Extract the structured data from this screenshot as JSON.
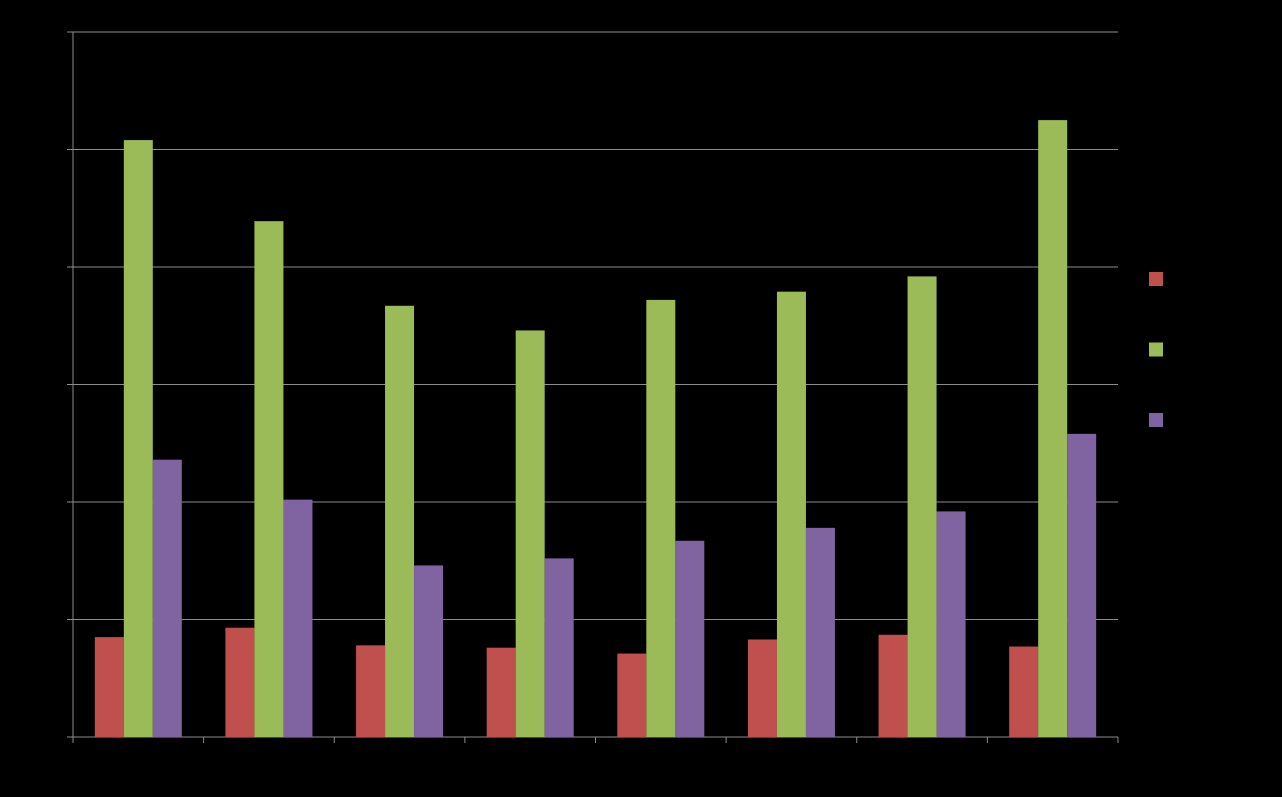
{
  "chart_data": {
    "type": "bar",
    "title": "",
    "xlabel": "",
    "ylabel": "",
    "categories": [
      "",
      "",
      "",
      "",
      "",
      "",
      "",
      ""
    ],
    "ylim": [
      0,
      60
    ],
    "ytick_step": 10,
    "grid": true,
    "legend": "right",
    "series": [
      {
        "color": "#c0504d",
        "values": [
          8.5,
          9.3,
          7.8,
          7.6,
          7.1,
          8.3,
          8.7,
          7.7
        ]
      },
      {
        "color": "#9bbb59",
        "values": [
          50.8,
          43.9,
          36.7,
          34.6,
          37.2,
          37.9,
          39.2,
          52.5
        ]
      },
      {
        "color": "#8064a2",
        "values": [
          23.6,
          20.2,
          14.6,
          15.2,
          16.7,
          17.8,
          19.2,
          25.8
        ]
      }
    ]
  }
}
